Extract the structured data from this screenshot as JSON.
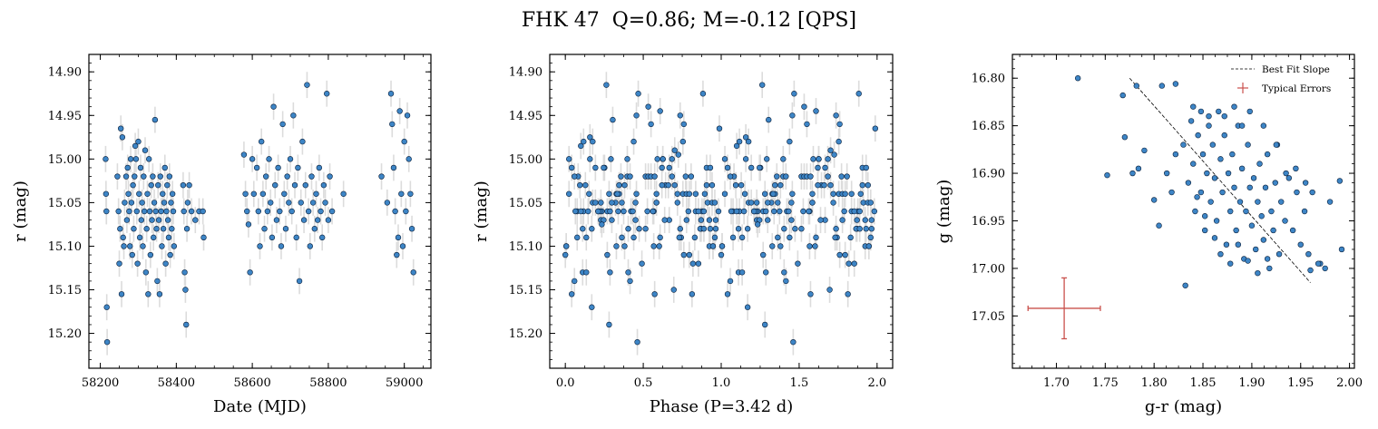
{
  "title": "FHK 47  Q=0.86; M=-0.12 [QPS]",
  "colors": {
    "point_fill": "#3d85c6",
    "point_edge": "#0a1f3a",
    "errorbar": "#dcdcdc",
    "typical_error": "#c9504c",
    "fit_line": "#000000"
  },
  "chart_data": [
    {
      "type": "scatter",
      "id": "lightcurve",
      "xlabel": "Date (MJD)",
      "ylabel": "r (mag)",
      "xlim": [
        58170,
        59070
      ],
      "ylim": [
        15.24,
        14.88
      ],
      "xticks": [
        58200,
        58400,
        58600,
        58800,
        59000
      ],
      "xtick_labels": [
        "58200",
        "58400",
        "58600",
        "58800",
        "59000"
      ],
      "yticks": [
        14.9,
        14.95,
        15.0,
        15.05,
        15.1,
        15.15,
        15.2
      ],
      "ytick_labels": [
        "14.90",
        "14.95",
        "15.00",
        "15.05",
        "15.10",
        "15.15",
        "15.20"
      ],
      "yerr": 0.015,
      "points": [
        [
          58214,
          15.0
        ],
        [
          58215,
          15.04
        ],
        [
          58216,
          15.06
        ],
        [
          58217,
          15.17
        ],
        [
          58218,
          15.21
        ],
        [
          58245,
          15.02
        ],
        [
          58248,
          15.06
        ],
        [
          58250,
          15.12
        ],
        [
          58252,
          15.08
        ],
        [
          58254,
          14.965
        ],
        [
          58256,
          15.155
        ],
        [
          58258,
          14.975
        ],
        [
          58260,
          15.09
        ],
        [
          58262,
          15.1
        ],
        [
          58264,
          15.05
        ],
        [
          58268,
          15.02
        ],
        [
          58270,
          15.07
        ],
        [
          58272,
          15.01
        ],
        [
          58274,
          15.04
        ],
        [
          58276,
          15.06
        ],
        [
          58278,
          15.1
        ],
        [
          58280,
          15.0
        ],
        [
          58282,
          15.05
        ],
        [
          58284,
          15.11
        ],
        [
          58286,
          15.03
        ],
        [
          58288,
          15.08
        ],
        [
          58290,
          15.02
        ],
        [
          58292,
          14.985
        ],
        [
          58294,
          15.0
        ],
        [
          58296,
          15.06
        ],
        [
          58298,
          15.12
        ],
        [
          58300,
          14.98
        ],
        [
          58302,
          15.04
        ],
        [
          58304,
          15.09
        ],
        [
          58306,
          15.01
        ],
        [
          58308,
          15.07
        ],
        [
          58310,
          15.05
        ],
        [
          58312,
          15.1
        ],
        [
          58314,
          15.02
        ],
        [
          58316,
          15.06
        ],
        [
          58318,
          14.99
        ],
        [
          58320,
          15.13
        ],
        [
          58322,
          15.08
        ],
        [
          58324,
          15.04
        ],
        [
          58326,
          15.155
        ],
        [
          58328,
          15.0
        ],
        [
          58330,
          15.06
        ],
        [
          58332,
          15.11
        ],
        [
          58334,
          15.03
        ],
        [
          58336,
          15.07
        ],
        [
          58338,
          15.02
        ],
        [
          58340,
          15.09
        ],
        [
          58342,
          15.05
        ],
        [
          58344,
          14.955
        ],
        [
          58346,
          15.06
        ],
        [
          58348,
          15.08
        ],
        [
          58350,
          15.14
        ],
        [
          58352,
          15.03
        ],
        [
          58354,
          15.07
        ],
        [
          58356,
          15.155
        ],
        [
          58358,
          15.02
        ],
        [
          58360,
          15.06
        ],
        [
          58362,
          15.1
        ],
        [
          58364,
          15.04
        ],
        [
          58366,
          15.08
        ],
        [
          58368,
          15.05
        ],
        [
          58370,
          15.01
        ],
        [
          58372,
          15.12
        ],
        [
          58374,
          15.06
        ],
        [
          58376,
          15.03
        ],
        [
          58378,
          15.07
        ],
        [
          58380,
          15.09
        ],
        [
          58382,
          15.02
        ],
        [
          58384,
          15.11
        ],
        [
          58386,
          15.05
        ],
        [
          58388,
          15.08
        ],
        [
          58390,
          15.04
        ],
        [
          58392,
          15.06
        ],
        [
          58394,
          15.1
        ],
        [
          58418,
          15.03
        ],
        [
          58420,
          15.06
        ],
        [
          58422,
          15.13
        ],
        [
          58424,
          15.15
        ],
        [
          58426,
          15.19
        ],
        [
          58428,
          15.08
        ],
        [
          58430,
          15.05
        ],
        [
          58434,
          15.03
        ],
        [
          58440,
          15.06
        ],
        [
          58450,
          15.07
        ],
        [
          58460,
          15.06
        ],
        [
          58470,
          15.06
        ],
        [
          58472,
          15.09
        ],
        [
          58578,
          14.995
        ],
        [
          58582,
          15.04
        ],
        [
          58586,
          15.06
        ],
        [
          58590,
          15.075
        ],
        [
          58594,
          15.13
        ],
        [
          58600,
          15.0
        ],
        [
          58604,
          15.04
        ],
        [
          58612,
          15.01
        ],
        [
          58616,
          15.06
        ],
        [
          58620,
          15.1
        ],
        [
          58624,
          14.98
        ],
        [
          58628,
          15.04
        ],
        [
          58632,
          15.08
        ],
        [
          58636,
          15.02
        ],
        [
          58640,
          15.06
        ],
        [
          58644,
          15.0
        ],
        [
          58648,
          15.05
        ],
        [
          58652,
          15.09
        ],
        [
          58656,
          14.94
        ],
        [
          58660,
          15.03
        ],
        [
          58664,
          15.07
        ],
        [
          58668,
          15.01
        ],
        [
          58672,
          15.06
        ],
        [
          58676,
          15.1
        ],
        [
          58680,
          14.96
        ],
        [
          58684,
          15.04
        ],
        [
          58688,
          15.08
        ],
        [
          58692,
          15.02
        ],
        [
          58696,
          15.05
        ],
        [
          58700,
          15.0
        ],
        [
          58704,
          15.06
        ],
        [
          58708,
          14.95
        ],
        [
          58712,
          15.03
        ],
        [
          58716,
          15.09
        ],
        [
          58720,
          15.01
        ],
        [
          58724,
          15.14
        ],
        [
          58728,
          15.05
        ],
        [
          58732,
          14.98
        ],
        [
          58736,
          15.07
        ],
        [
          58740,
          15.03
        ],
        [
          58744,
          14.915
        ],
        [
          58748,
          15.06
        ],
        [
          58752,
          15.1
        ],
        [
          58756,
          15.02
        ],
        [
          58760,
          15.05
        ],
        [
          58764,
          15.08
        ],
        [
          58768,
          15.04
        ],
        [
          58772,
          15.07
        ],
        [
          58776,
          15.01
        ],
        [
          58780,
          15.06
        ],
        [
          58784,
          15.09
        ],
        [
          58788,
          15.03
        ],
        [
          58792,
          15.05
        ],
        [
          58796,
          14.925
        ],
        [
          58800,
          15.07
        ],
        [
          58804,
          15.02
        ],
        [
          58810,
          15.06
        ],
        [
          58840,
          15.04
        ],
        [
          58940,
          15.02
        ],
        [
          58955,
          15.05
        ],
        [
          58965,
          14.925
        ],
        [
          58968,
          14.96
        ],
        [
          58972,
          15.01
        ],
        [
          58976,
          15.06
        ],
        [
          58980,
          15.11
        ],
        [
          58984,
          15.09
        ],
        [
          58988,
          14.945
        ],
        [
          58992,
          15.04
        ],
        [
          58996,
          15.1
        ],
        [
          59000,
          14.98
        ],
        [
          59004,
          15.06
        ],
        [
          59008,
          14.95
        ],
        [
          59012,
          15.0
        ],
        [
          59016,
          15.04
        ],
        [
          59020,
          15.08
        ],
        [
          59024,
          15.13
        ]
      ]
    },
    {
      "type": "scatter",
      "id": "phased",
      "xlabel": "Phase (P=3.42 d)",
      "ylabel": "r (mag)",
      "xlim": [
        -0.1,
        2.1
      ],
      "ylim": [
        15.24,
        14.88
      ],
      "xticks": [
        0.0,
        0.5,
        1.0,
        1.5,
        2.0
      ],
      "xtick_labels": [
        "0.0",
        "0.5",
        "1.0",
        "1.5",
        "2.0"
      ],
      "yticks": [
        14.9,
        14.95,
        15.0,
        15.05,
        15.1,
        15.15,
        15.2
      ],
      "ytick_labels": [
        "14.90",
        "14.95",
        "15.00",
        "15.05",
        "15.10",
        "15.15",
        "15.20"
      ],
      "yerr": 0.015,
      "mirror_points_from": "lightcurve",
      "period_days": 3.42,
      "phase_offset_mjd": 58213
    },
    {
      "type": "scatter",
      "id": "color_mag",
      "xlabel": "g-r (mag)",
      "ylabel": "g (mag)",
      "xlim": [
        1.655,
        2.005
      ],
      "ylim": [
        17.105,
        16.775
      ],
      "xticks": [
        1.7,
        1.75,
        1.8,
        1.85,
        1.9,
        1.95,
        2.0
      ],
      "xtick_labels": [
        "1.70",
        "1.75",
        "1.80",
        "1.85",
        "1.90",
        "1.95",
        "2.00"
      ],
      "yticks": [
        16.8,
        16.85,
        16.9,
        16.95,
        17.0,
        17.05
      ],
      "ytick_labels": [
        "16.80",
        "16.85",
        "16.90",
        "16.95",
        "17.00",
        "17.05"
      ],
      "fit_line": {
        "x": [
          1.775,
          1.96
        ],
        "y": [
          16.8,
          17.015
        ]
      },
      "typical_error": {
        "x": 1.708,
        "y": 17.042,
        "xerr": 0.037,
        "yerr": 0.032
      },
      "legend": [
        "Best Fit Slope",
        "Typical Errors"
      ],
      "legend_position": "upper-right",
      "points": [
        [
          1.722,
          16.8
        ],
        [
          1.768,
          16.818
        ],
        [
          1.782,
          16.808
        ],
        [
          1.808,
          16.808
        ],
        [
          1.822,
          16.806
        ],
        [
          1.77,
          16.862
        ],
        [
          1.778,
          16.9
        ],
        [
          1.79,
          16.876
        ],
        [
          1.784,
          16.895
        ],
        [
          1.752,
          16.902
        ],
        [
          1.8,
          16.928
        ],
        [
          1.805,
          16.955
        ],
        [
          1.813,
          16.9
        ],
        [
          1.818,
          16.92
        ],
        [
          1.822,
          16.88
        ],
        [
          1.83,
          16.87
        ],
        [
          1.835,
          16.91
        ],
        [
          1.838,
          16.845
        ],
        [
          1.84,
          16.89
        ],
        [
          1.842,
          16.94
        ],
        [
          1.845,
          16.86
        ],
        [
          1.848,
          16.92
        ],
        [
          1.85,
          16.88
        ],
        [
          1.852,
          16.96
        ],
        [
          1.854,
          16.9
        ],
        [
          1.856,
          16.84
        ],
        [
          1.858,
          16.93
        ],
        [
          1.86,
          16.87
        ],
        [
          1.862,
          16.905
        ],
        [
          1.864,
          16.95
        ],
        [
          1.866,
          16.835
        ],
        [
          1.868,
          16.885
        ],
        [
          1.87,
          16.92
        ],
        [
          1.872,
          16.86
        ],
        [
          1.874,
          16.975
        ],
        [
          1.876,
          16.9
        ],
        [
          1.878,
          16.94
        ],
        [
          1.88,
          16.88
        ],
        [
          1.882,
          16.915
        ],
        [
          1.884,
          16.96
        ],
        [
          1.886,
          16.85
        ],
        [
          1.888,
          16.93
        ],
        [
          1.89,
          16.895
        ],
        [
          1.892,
          16.99
        ],
        [
          1.894,
          16.94
        ],
        [
          1.896,
          16.87
        ],
        [
          1.898,
          16.915
        ],
        [
          1.9,
          16.955
        ],
        [
          1.902,
          16.905
        ],
        [
          1.904,
          16.98
        ],
        [
          1.906,
          16.93
        ],
        [
          1.908,
          16.89
        ],
        [
          1.91,
          16.945
        ],
        [
          1.912,
          16.97
        ],
        [
          1.914,
          16.915
        ],
        [
          1.916,
          16.88
        ],
        [
          1.918,
          17.0
        ],
        [
          1.92,
          16.94
        ],
        [
          1.922,
          16.96
        ],
        [
          1.924,
          16.91
        ],
        [
          1.926,
          16.87
        ],
        [
          1.928,
          16.985
        ],
        [
          1.93,
          16.93
        ],
        [
          1.934,
          16.95
        ],
        [
          1.938,
          16.905
        ],
        [
          1.942,
          16.96
        ],
        [
          1.946,
          16.92
        ],
        [
          1.95,
          16.975
        ],
        [
          1.954,
          16.94
        ],
        [
          1.958,
          16.985
        ],
        [
          1.962,
          16.92
        ],
        [
          1.97,
          16.995
        ],
        [
          1.98,
          16.93
        ],
        [
          1.99,
          16.908
        ],
        [
          1.992,
          16.98
        ],
        [
          1.832,
          17.018
        ],
        [
          1.84,
          16.83
        ],
        [
          1.848,
          16.835
        ],
        [
          1.856,
          16.85
        ],
        [
          1.872,
          16.84
        ],
        [
          1.882,
          16.83
        ],
        [
          1.89,
          16.85
        ],
        [
          1.898,
          16.835
        ],
        [
          1.912,
          16.85
        ],
        [
          1.925,
          16.87
        ],
        [
          1.935,
          16.9
        ],
        [
          1.945,
          16.895
        ],
        [
          1.955,
          16.91
        ],
        [
          1.968,
          16.995
        ],
        [
          1.975,
          17.0
        ],
        [
          1.844,
          16.925
        ],
        [
          1.852,
          16.945
        ],
        [
          1.862,
          16.968
        ],
        [
          1.868,
          16.985
        ],
        [
          1.878,
          16.995
        ],
        [
          1.886,
          16.975
        ],
        [
          1.896,
          16.992
        ],
        [
          1.906,
          17.005
        ],
        [
          1.916,
          16.99
        ],
        [
          1.96,
          17.002
        ]
      ]
    }
  ]
}
